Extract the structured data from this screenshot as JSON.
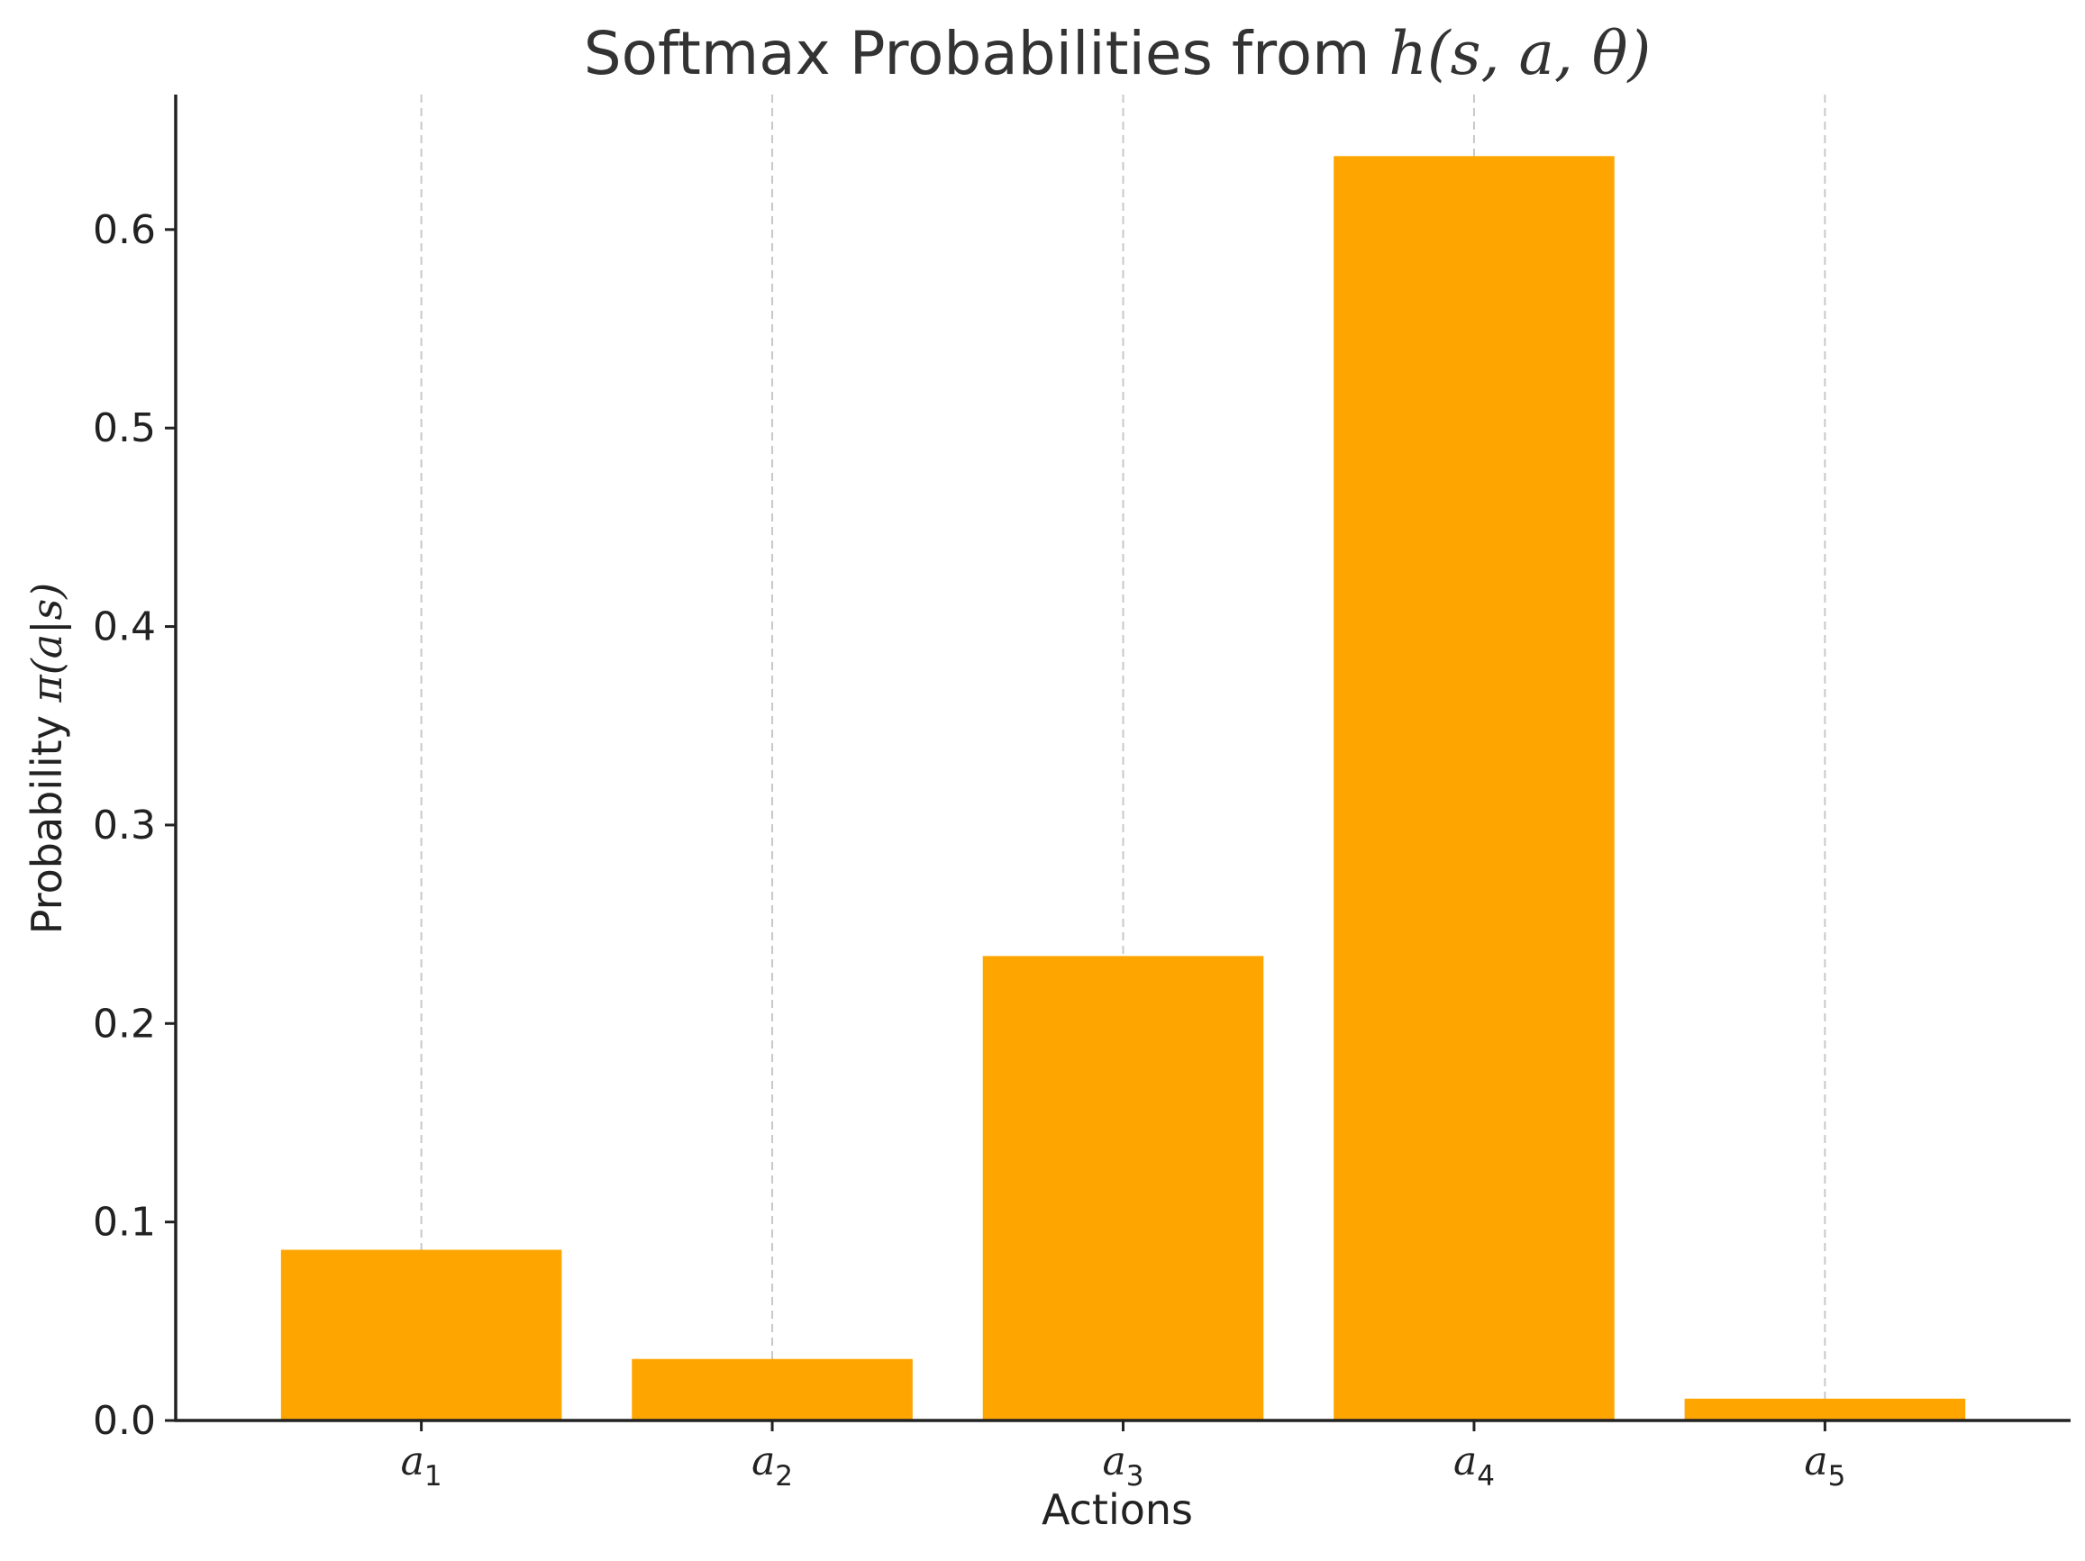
{
  "chart_data": {
    "type": "bar",
    "title_prefix": "Softmax Probabilities from ",
    "title_math": "h(s, a, θ)",
    "xlabel": "Actions",
    "ylabel_prefix": "Probability ",
    "ylabel_math": "π(a|s)",
    "categories": [
      {
        "base": "a",
        "sub": "1"
      },
      {
        "base": "a",
        "sub": "2"
      },
      {
        "base": "a",
        "sub": "3"
      },
      {
        "base": "a",
        "sub": "4"
      },
      {
        "base": "a",
        "sub": "5"
      }
    ],
    "values": [
      0.086,
      0.031,
      0.234,
      0.637,
      0.011
    ],
    "ylim": [
      0,
      0.668
    ],
    "yticks": [
      "0.0",
      "0.1",
      "0.2",
      "0.3",
      "0.4",
      "0.5",
      "0.6"
    ],
    "grid": "vertical dashed",
    "bar_color": "#FFA500"
  }
}
